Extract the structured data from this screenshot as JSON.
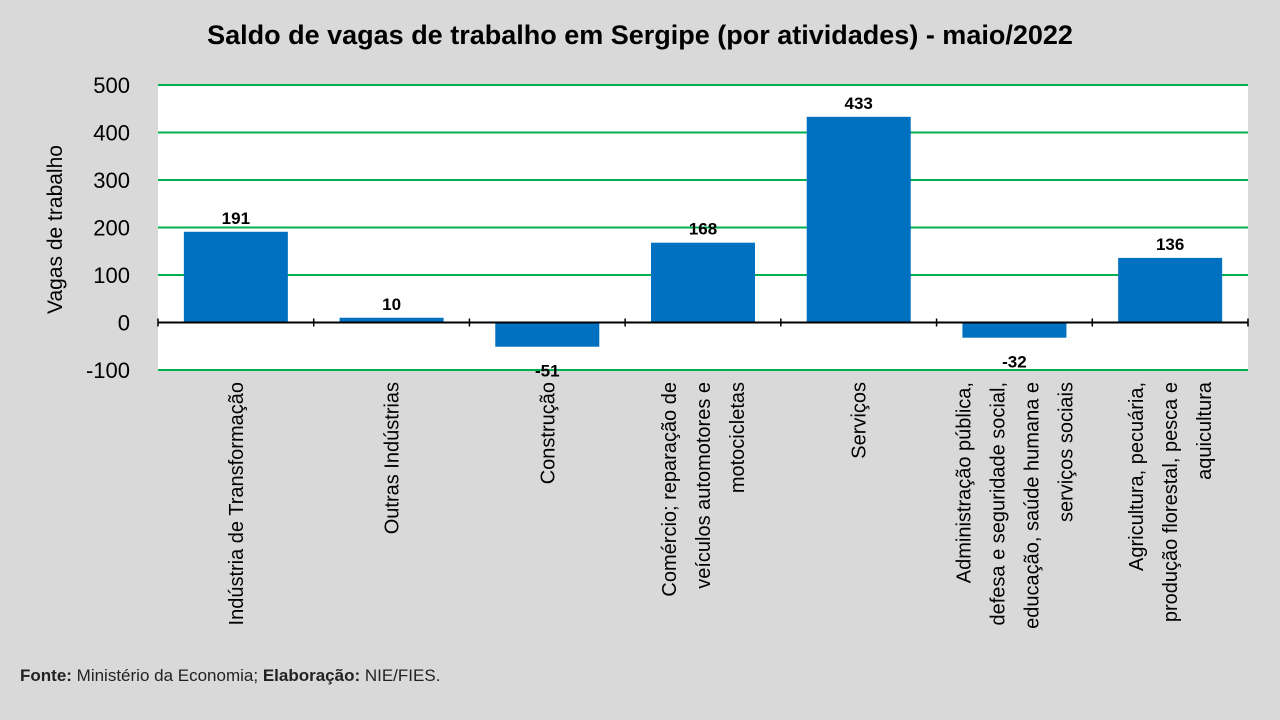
{
  "chart_data": {
    "type": "bar",
    "title": "Saldo de vagas de trabalho em Sergipe (por atividades) - maio/2022",
    "ylabel": "Vagas de trabalho",
    "xlabel": "",
    "ylim": [
      -100,
      500
    ],
    "yticks": [
      -100,
      0,
      100,
      200,
      300,
      400,
      500
    ],
    "grid": true,
    "categories": [
      [
        "Indústria de Transformação"
      ],
      [
        "Outras Indústrias"
      ],
      [
        "Construção"
      ],
      [
        "Comércio; reparação de",
        "veículos automotores e",
        "motocicletas"
      ],
      [
        "Serviços"
      ],
      [
        "Administração pública,",
        "defesa e seguridade social,",
        "educação, saúde humana e",
        "serviços sociais"
      ],
      [
        "Agricultura, pecuária,",
        "produção florestal, pesca e",
        "aquicultura"
      ]
    ],
    "values": [
      191,
      10,
      -51,
      168,
      433,
      -32,
      136
    ],
    "colors": {
      "bar": "#0070c0",
      "grid": "#00b050",
      "background": "#d9d9d9",
      "plot_background": "#ffffff"
    }
  },
  "footer": {
    "source_label": "Fonte:",
    "source_value": " Ministério da Economia; ",
    "elab_label": "Elaboração:",
    "elab_value": " NIE/FIES."
  }
}
